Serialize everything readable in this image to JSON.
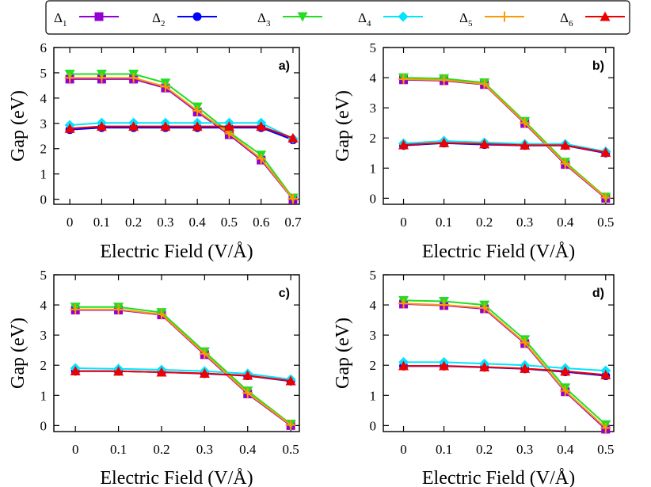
{
  "legend": [
    {
      "id": "d1",
      "symbol": "Δ",
      "sub": "1",
      "color": "#9400d3",
      "marker": "square"
    },
    {
      "id": "d2",
      "symbol": "Δ",
      "sub": "2",
      "color": "#0000ff",
      "marker": "circle"
    },
    {
      "id": "d3",
      "symbol": "Δ",
      "sub": "3",
      "color": "#22dd22",
      "marker": "triangle-down"
    },
    {
      "id": "d4",
      "symbol": "Δ",
      "sub": "4",
      "color": "#00e5ff",
      "marker": "diamond"
    },
    {
      "id": "d5",
      "symbol": "Δ",
      "sub": "5",
      "color": "#ff9900",
      "marker": "plus"
    },
    {
      "id": "d6",
      "symbol": "Δ",
      "sub": "6",
      "color": "#ee0000",
      "marker": "triangle-up"
    }
  ],
  "chart_data": [
    {
      "type": "line",
      "panel_label": "a)",
      "xlabel": "Electric Field (V/Å)",
      "ylabel": "Gap (eV)",
      "x": [
        0,
        0.1,
        0.2,
        0.3,
        0.4,
        0.5,
        0.6,
        0.7
      ],
      "xticks": [
        "0",
        "0.1",
        "0.2",
        "0.3",
        "0.4",
        "0.5",
        "0.6",
        "0.7"
      ],
      "xlim": [
        -0.05,
        0.72
      ],
      "ylim": [
        -0.2,
        6
      ],
      "yticks": [
        "0",
        "1",
        "2",
        "3",
        "4",
        "5",
        "6"
      ],
      "series": [
        {
          "name": "Δ1",
          "values": [
            4.75,
            4.75,
            4.75,
            4.4,
            3.45,
            2.55,
            1.55,
            0.0
          ]
        },
        {
          "name": "Δ2",
          "values": [
            2.75,
            2.83,
            2.83,
            2.83,
            2.83,
            2.83,
            2.83,
            2.35
          ]
        },
        {
          "name": "Δ3",
          "values": [
            4.95,
            4.95,
            4.95,
            4.6,
            3.65,
            2.65,
            1.75,
            0.05
          ]
        },
        {
          "name": "Δ4",
          "values": [
            2.93,
            3.02,
            3.02,
            3.02,
            3.02,
            3.02,
            3.02,
            2.4
          ]
        },
        {
          "name": "Δ5",
          "values": [
            4.8,
            4.8,
            4.8,
            4.45,
            3.5,
            2.6,
            1.6,
            0.02
          ]
        },
        {
          "name": "Δ6",
          "values": [
            2.8,
            2.88,
            2.88,
            2.88,
            2.88,
            2.88,
            2.88,
            2.42
          ]
        }
      ]
    },
    {
      "type": "line",
      "panel_label": "b)",
      "xlabel": "Electric Field (V/Å)",
      "ylabel": "Gap (eV)",
      "x": [
        0,
        0.1,
        0.2,
        0.3,
        0.4,
        0.5
      ],
      "xticks": [
        "0",
        "0.1",
        "0.2",
        "0.3",
        "0.4",
        "0.5"
      ],
      "xlim": [
        -0.05,
        0.52
      ],
      "ylim": [
        -0.2,
        5
      ],
      "yticks": [
        "0",
        "1",
        "2",
        "3",
        "4",
        "5"
      ],
      "series": [
        {
          "name": "Δ1",
          "values": [
            3.93,
            3.9,
            3.77,
            2.48,
            1.12,
            0.0
          ]
        },
        {
          "name": "Δ2",
          "values": [
            1.75,
            1.83,
            1.78,
            1.75,
            1.75,
            1.5
          ]
        },
        {
          "name": "Δ3",
          "values": [
            4.0,
            3.97,
            3.83,
            2.55,
            1.2,
            0.04
          ]
        },
        {
          "name": "Δ4",
          "values": [
            1.82,
            1.9,
            1.85,
            1.8,
            1.8,
            1.55
          ]
        },
        {
          "name": "Δ5",
          "values": [
            3.95,
            3.92,
            3.79,
            2.5,
            1.15,
            0.02
          ]
        },
        {
          "name": "Δ6",
          "values": [
            1.77,
            1.84,
            1.8,
            1.76,
            1.76,
            1.52
          ]
        }
      ]
    },
    {
      "type": "line",
      "panel_label": "c)",
      "xlabel": "Electric Field (V/Å)",
      "ylabel": "Gap (eV)",
      "x": [
        0,
        0.1,
        0.2,
        0.3,
        0.4,
        0.5
      ],
      "xticks": [
        "0",
        "0.1",
        "0.2",
        "0.3",
        "0.4",
        "0.5"
      ],
      "xlim": [
        -0.05,
        0.52
      ],
      "ylim": [
        -0.2,
        5
      ],
      "yticks": [
        "0",
        "1",
        "2",
        "3",
        "4",
        "5"
      ],
      "series": [
        {
          "name": "Δ1",
          "values": [
            3.83,
            3.83,
            3.67,
            2.35,
            1.05,
            0.0
          ]
        },
        {
          "name": "Δ2",
          "values": [
            1.8,
            1.8,
            1.77,
            1.72,
            1.65,
            1.47
          ]
        },
        {
          "name": "Δ3",
          "values": [
            3.93,
            3.93,
            3.75,
            2.45,
            1.15,
            0.05
          ]
        },
        {
          "name": "Δ4",
          "values": [
            1.9,
            1.88,
            1.85,
            1.8,
            1.72,
            1.53
          ]
        },
        {
          "name": "Δ5",
          "values": [
            3.85,
            3.85,
            3.69,
            2.38,
            1.08,
            0.02
          ]
        },
        {
          "name": "Δ6",
          "values": [
            1.81,
            1.8,
            1.77,
            1.73,
            1.66,
            1.48
          ]
        }
      ]
    },
    {
      "type": "line",
      "panel_label": "d)",
      "xlabel": "Electric Field (V/Å)",
      "ylabel": "Gap (eV)",
      "x": [
        0,
        0.1,
        0.2,
        0.3,
        0.4,
        0.5
      ],
      "xticks": [
        "0",
        "0.1",
        "0.2",
        "0.3",
        "0.4",
        "0.5"
      ],
      "xlim": [
        -0.05,
        0.52
      ],
      "ylim": [
        -0.2,
        5
      ],
      "yticks": [
        "0",
        "1",
        "2",
        "3",
        "4",
        "5"
      ],
      "series": [
        {
          "name": "Δ1",
          "values": [
            4.03,
            3.98,
            3.87,
            2.72,
            1.12,
            -0.12
          ]
        },
        {
          "name": "Δ2",
          "values": [
            1.97,
            1.97,
            1.93,
            1.88,
            1.78,
            1.65
          ]
        },
        {
          "name": "Δ3",
          "values": [
            4.15,
            4.12,
            4.0,
            2.85,
            1.25,
            0.03
          ]
        },
        {
          "name": "Δ4",
          "values": [
            2.1,
            2.1,
            2.05,
            2.0,
            1.9,
            1.82
          ]
        },
        {
          "name": "Δ5",
          "values": [
            4.05,
            4.0,
            3.9,
            2.75,
            1.15,
            -0.08
          ]
        },
        {
          "name": "Δ6",
          "values": [
            1.98,
            1.98,
            1.94,
            1.89,
            1.8,
            1.68
          ]
        }
      ]
    }
  ]
}
